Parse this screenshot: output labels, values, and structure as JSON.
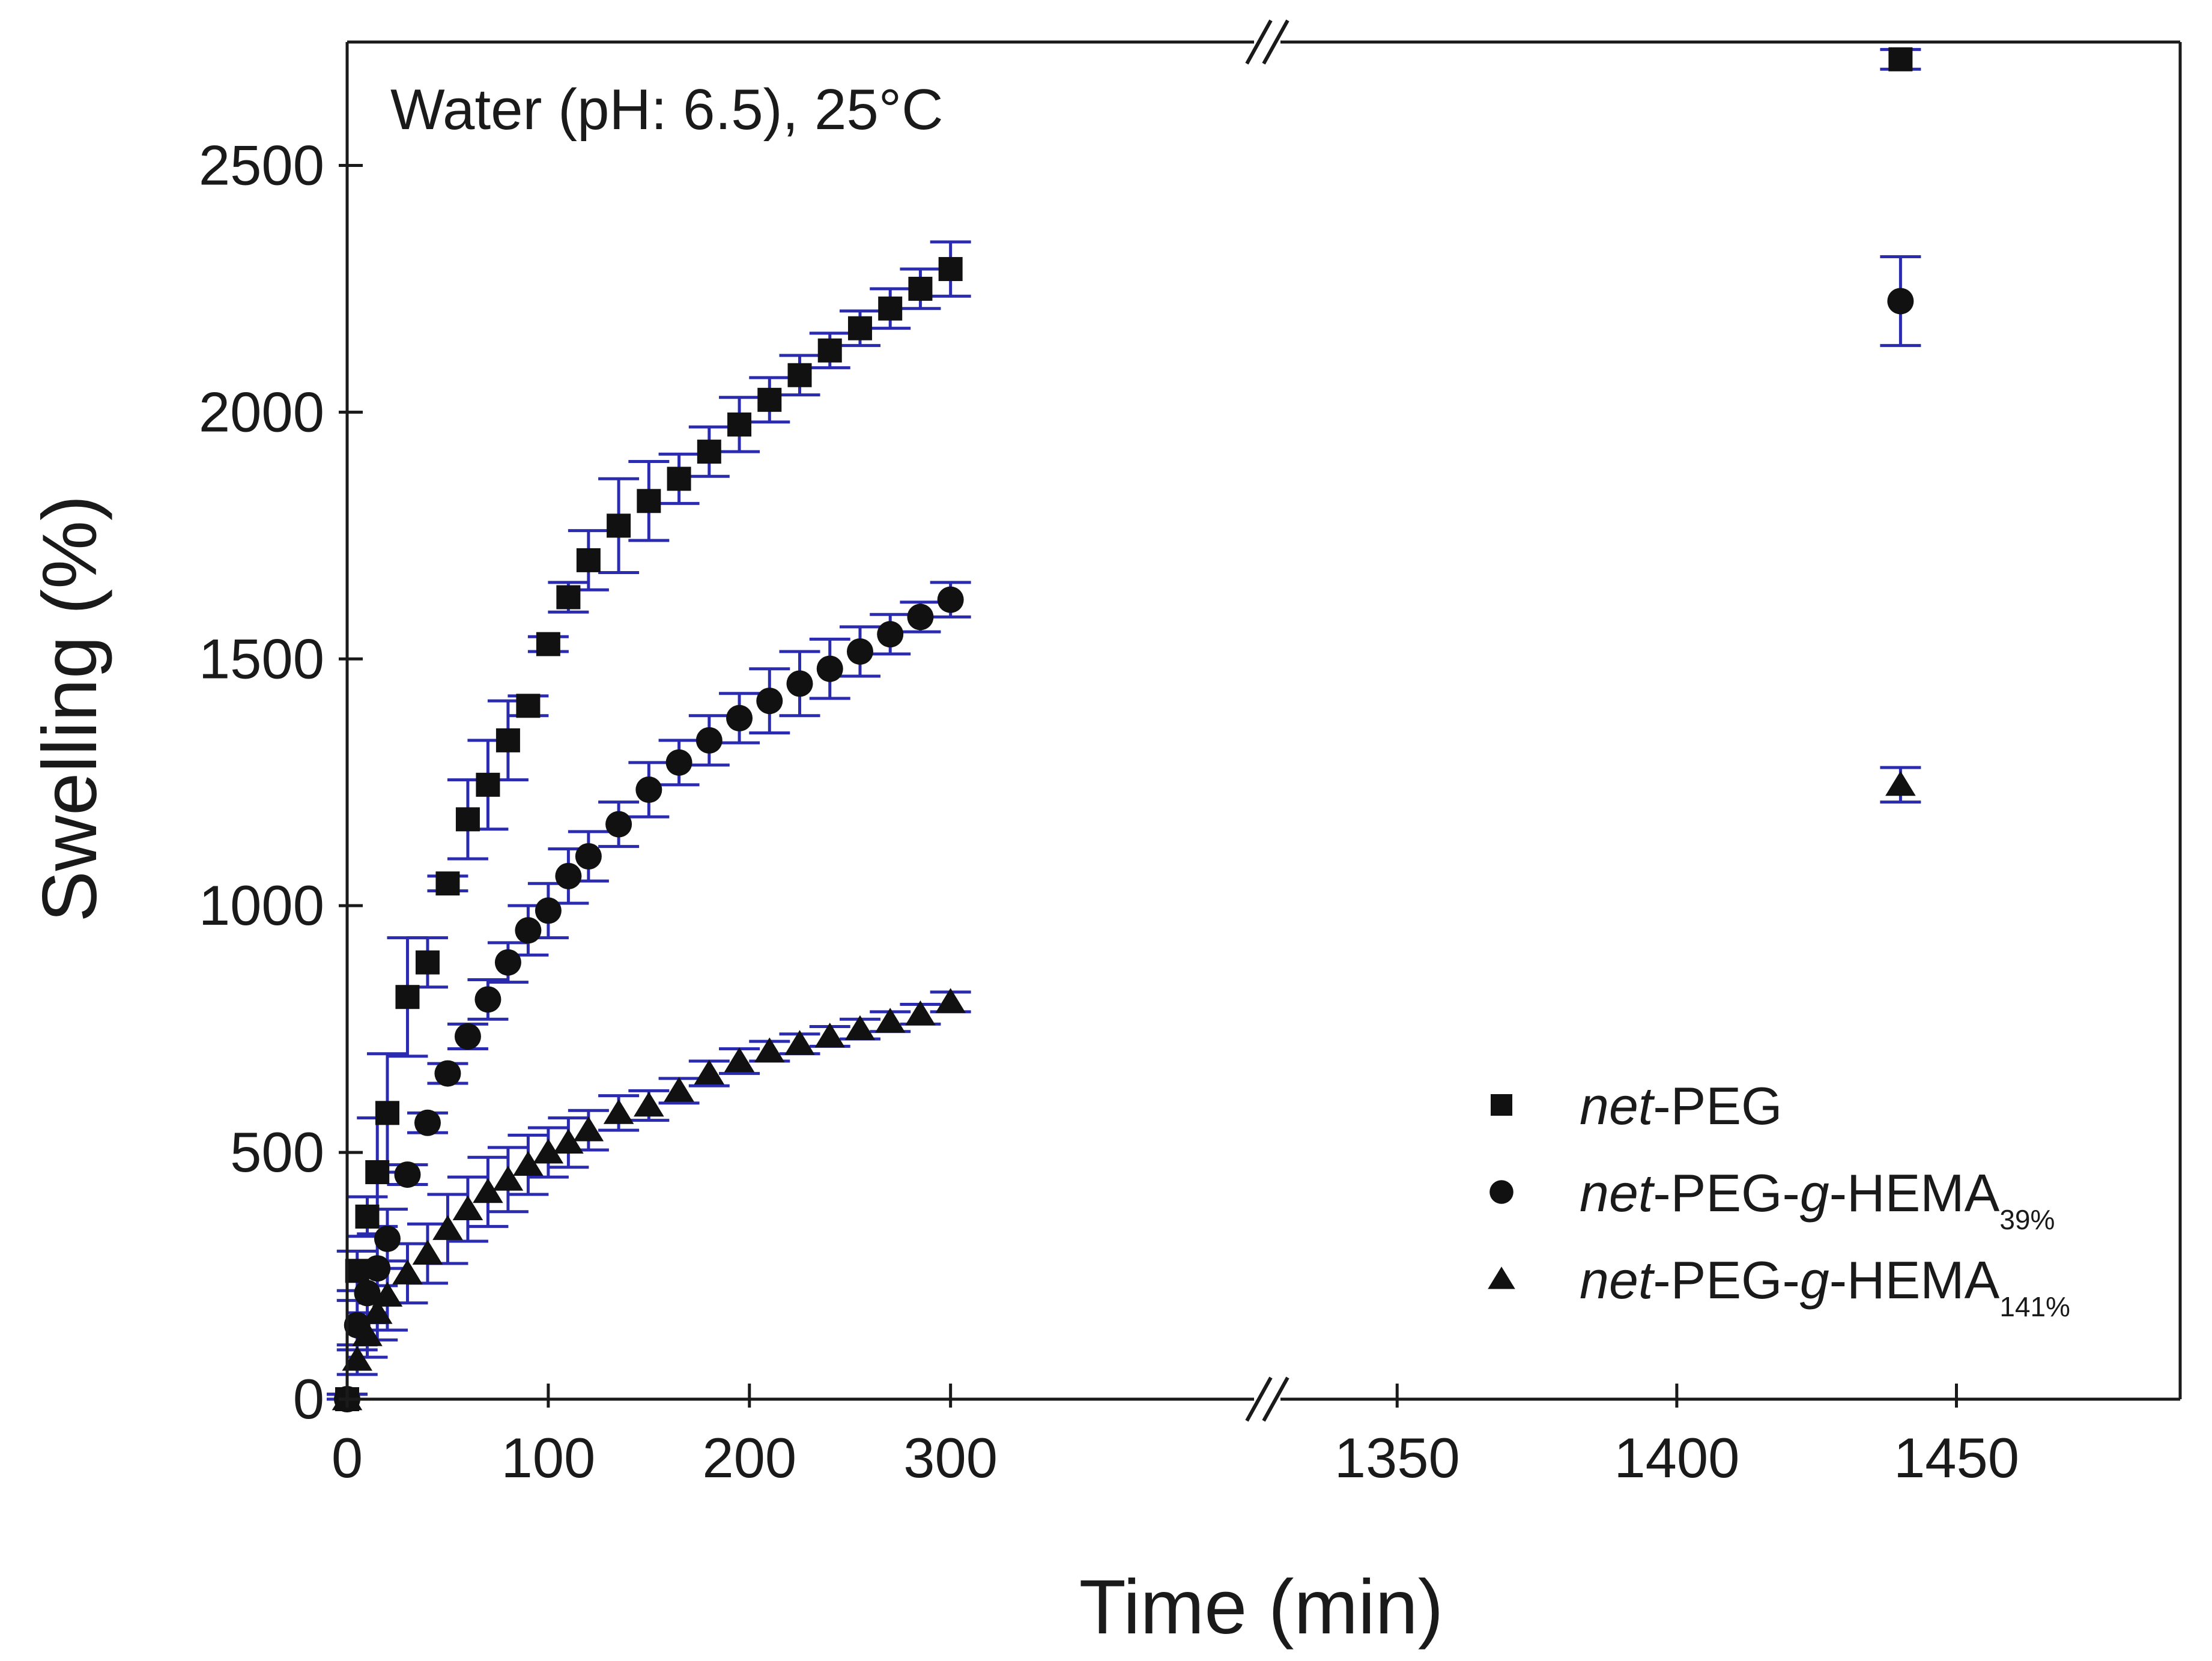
{
  "chart_data": {
    "type": "scatter",
    "title": "",
    "annotation": "Water (pH: 6.5), 25°C",
    "xlabel": "Time (min)",
    "ylabel": "Swelling (%)",
    "ylim": [
      0,
      2750
    ],
    "y_ticks": [
      0,
      500,
      1000,
      1500,
      2000,
      2500
    ],
    "x_segments": [
      {
        "range": [
          0,
          450
        ],
        "ticks": [
          0,
          100,
          200,
          300
        ]
      },
      {
        "range": [
          1330,
          1490
        ],
        "ticks": [
          1350,
          1400,
          1450
        ]
      }
    ],
    "axis_break": true,
    "error_bar_color": "#2b2bb0",
    "marker_color": "#111111",
    "legend_position": "bottom-right",
    "series": [
      {
        "name": "net-PEG",
        "legend_italic": "net",
        "legend_rest": "-PEG",
        "legend_sub": "",
        "marker": "square",
        "points": [
          {
            "x": 0,
            "y": 0,
            "err": 10
          },
          {
            "x": 5,
            "y": 260,
            "err": 40
          },
          {
            "x": 10,
            "y": 370,
            "err": 40
          },
          {
            "x": 15,
            "y": 460,
            "err": 110
          },
          {
            "x": 20,
            "y": 580,
            "err": 120
          },
          {
            "x": 30,
            "y": 815,
            "err": 120
          },
          {
            "x": 40,
            "y": 885,
            "err": 50
          },
          {
            "x": 50,
            "y": 1045,
            "err": 15
          },
          {
            "x": 60,
            "y": 1175,
            "err": 80
          },
          {
            "x": 70,
            "y": 1245,
            "err": 90
          },
          {
            "x": 80,
            "y": 1335,
            "err": 80
          },
          {
            "x": 90,
            "y": 1405,
            "err": 20
          },
          {
            "x": 100,
            "y": 1530,
            "err": 15
          },
          {
            "x": 110,
            "y": 1625,
            "err": 30
          },
          {
            "x": 120,
            "y": 1700,
            "err": 60
          },
          {
            "x": 135,
            "y": 1770,
            "err": 95
          },
          {
            "x": 150,
            "y": 1820,
            "err": 80
          },
          {
            "x": 165,
            "y": 1865,
            "err": 50
          },
          {
            "x": 180,
            "y": 1920,
            "err": 50
          },
          {
            "x": 195,
            "y": 1975,
            "err": 55
          },
          {
            "x": 210,
            "y": 2025,
            "err": 45
          },
          {
            "x": 225,
            "y": 2075,
            "err": 40
          },
          {
            "x": 240,
            "y": 2125,
            "err": 35
          },
          {
            "x": 255,
            "y": 2170,
            "err": 35
          },
          {
            "x": 270,
            "y": 2210,
            "err": 40
          },
          {
            "x": 285,
            "y": 2250,
            "err": 40
          },
          {
            "x": 300,
            "y": 2290,
            "err": 55
          },
          {
            "x": 1440,
            "y": 2715,
            "err": 20
          }
        ]
      },
      {
        "name": "net-PEG-g-HEMA39%",
        "legend_italic": "net",
        "legend_rest": "-PEG-",
        "legend_italic2": "g",
        "legend_rest2": "-HEMA",
        "legend_sub": "39%",
        "marker": "circle",
        "points": [
          {
            "x": 0,
            "y": 0,
            "err": 10
          },
          {
            "x": 5,
            "y": 150,
            "err": 50
          },
          {
            "x": 10,
            "y": 215,
            "err": 60
          },
          {
            "x": 15,
            "y": 265,
            "err": 70
          },
          {
            "x": 20,
            "y": 325,
            "err": 60
          },
          {
            "x": 30,
            "y": 455,
            "err": 20
          },
          {
            "x": 40,
            "y": 560,
            "err": 20
          },
          {
            "x": 50,
            "y": 660,
            "err": 20
          },
          {
            "x": 60,
            "y": 735,
            "err": 25
          },
          {
            "x": 70,
            "y": 810,
            "err": 40
          },
          {
            "x": 80,
            "y": 885,
            "err": 40
          },
          {
            "x": 90,
            "y": 950,
            "err": 50
          },
          {
            "x": 100,
            "y": 990,
            "err": 55
          },
          {
            "x": 110,
            "y": 1060,
            "err": 55
          },
          {
            "x": 120,
            "y": 1100,
            "err": 50
          },
          {
            "x": 135,
            "y": 1165,
            "err": 45
          },
          {
            "x": 150,
            "y": 1235,
            "err": 55
          },
          {
            "x": 165,
            "y": 1290,
            "err": 45
          },
          {
            "x": 180,
            "y": 1335,
            "err": 50
          },
          {
            "x": 195,
            "y": 1380,
            "err": 50
          },
          {
            "x": 210,
            "y": 1415,
            "err": 65
          },
          {
            "x": 225,
            "y": 1450,
            "err": 65
          },
          {
            "x": 240,
            "y": 1480,
            "err": 60
          },
          {
            "x": 255,
            "y": 1515,
            "err": 50
          },
          {
            "x": 270,
            "y": 1550,
            "err": 40
          },
          {
            "x": 285,
            "y": 1585,
            "err": 30
          },
          {
            "x": 300,
            "y": 1620,
            "err": 35
          },
          {
            "x": 1440,
            "y": 2225,
            "err": 90
          }
        ]
      },
      {
        "name": "net-PEG-g-HEMA141%",
        "legend_italic": "net",
        "legend_rest": "-PEG-",
        "legend_italic2": "g",
        "legend_rest2": "-HEMA",
        "legend_sub": "141%",
        "marker": "triangle",
        "points": [
          {
            "x": 0,
            "y": 0,
            "err": 10
          },
          {
            "x": 5,
            "y": 80,
            "err": 30
          },
          {
            "x": 10,
            "y": 130,
            "err": 45
          },
          {
            "x": 15,
            "y": 175,
            "err": 55
          },
          {
            "x": 20,
            "y": 210,
            "err": 70
          },
          {
            "x": 30,
            "y": 255,
            "err": 60
          },
          {
            "x": 40,
            "y": 295,
            "err": 60
          },
          {
            "x": 50,
            "y": 345,
            "err": 70
          },
          {
            "x": 60,
            "y": 385,
            "err": 65
          },
          {
            "x": 70,
            "y": 420,
            "err": 70
          },
          {
            "x": 80,
            "y": 445,
            "err": 65
          },
          {
            "x": 90,
            "y": 475,
            "err": 60
          },
          {
            "x": 100,
            "y": 500,
            "err": 50
          },
          {
            "x": 110,
            "y": 520,
            "err": 50
          },
          {
            "x": 120,
            "y": 545,
            "err": 40
          },
          {
            "x": 135,
            "y": 580,
            "err": 35
          },
          {
            "x": 150,
            "y": 595,
            "err": 30
          },
          {
            "x": 165,
            "y": 625,
            "err": 25
          },
          {
            "x": 180,
            "y": 660,
            "err": 25
          },
          {
            "x": 195,
            "y": 685,
            "err": 25
          },
          {
            "x": 210,
            "y": 705,
            "err": 20
          },
          {
            "x": 225,
            "y": 720,
            "err": 20
          },
          {
            "x": 240,
            "y": 735,
            "err": 20
          },
          {
            "x": 255,
            "y": 750,
            "err": 20
          },
          {
            "x": 270,
            "y": 765,
            "err": 20
          },
          {
            "x": 285,
            "y": 780,
            "err": 20
          },
          {
            "x": 300,
            "y": 805,
            "err": 20
          },
          {
            "x": 1440,
            "y": 1245,
            "err": 35
          }
        ]
      }
    ]
  }
}
